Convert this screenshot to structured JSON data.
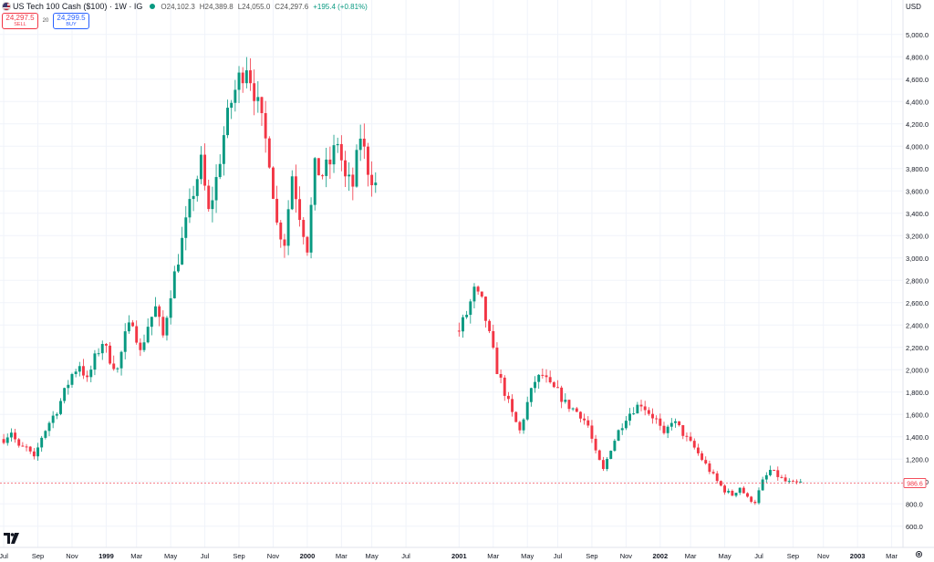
{
  "header": {
    "title": "US Tech 100 Cash ($100) · 1W · IG",
    "open": "O24,102.3",
    "high": "H24,389.8",
    "low": "L24,055.0",
    "close": "C24,297.6",
    "change": "+195.4 (+0.81%)",
    "status_color": "#089981"
  },
  "trade": {
    "sell_price": "24,297.5",
    "sell_label": "SELL",
    "spread": "20",
    "buy_price": "24,299.5",
    "buy_label": "BUY"
  },
  "currency": "USD",
  "colors": {
    "up": "#089981",
    "down": "#f23645",
    "grid": "#f0f3fa",
    "text": "#131722"
  },
  "icons": {
    "logo": "tradingview-logo",
    "settings": "gear-icon",
    "flag": "us-flag-icon"
  },
  "chart_data": {
    "type": "candlestick",
    "ylim": [
      500,
      5200
    ],
    "y_ticks": [
      "600.0",
      "800.0",
      "1,000.0",
      "1,200.0",
      "1,400.0",
      "1,600.0",
      "1,800.0",
      "2,000.0",
      "2,200.0",
      "2,400.0",
      "2,600.0",
      "2,800.0",
      "3,000.0",
      "3,200.0",
      "3,400.0",
      "3,600.0",
      "3,800.0",
      "4,000.0",
      "4,200.0",
      "4,400.0",
      "4,600.0",
      "4,800.0",
      "5,000.0"
    ],
    "x_ticks": [
      {
        "label": "Jul",
        "week": 0,
        "bold": false
      },
      {
        "label": "Sep",
        "week": 9,
        "bold": false
      },
      {
        "label": "Nov",
        "week": 18,
        "bold": false
      },
      {
        "label": "1999",
        "week": 27,
        "bold": true
      },
      {
        "label": "Mar",
        "week": 35,
        "bold": false
      },
      {
        "label": "May",
        "week": 44,
        "bold": false
      },
      {
        "label": "Jul",
        "week": 53,
        "bold": false
      },
      {
        "label": "Sep",
        "week": 62,
        "bold": false
      },
      {
        "label": "Nov",
        "week": 71,
        "bold": false
      },
      {
        "label": "2000",
        "week": 80,
        "bold": true
      },
      {
        "label": "Mar",
        "week": 89,
        "bold": false
      },
      {
        "label": "May",
        "week": 97,
        "bold": false
      },
      {
        "label": "Jul",
        "week": 106,
        "bold": false
      },
      {
        "label": "2001",
        "week": 120,
        "bold": true
      },
      {
        "label": "Mar",
        "week": 129,
        "bold": false
      },
      {
        "label": "May",
        "week": 138,
        "bold": false
      },
      {
        "label": "Jul",
        "week": 146,
        "bold": false
      },
      {
        "label": "Sep",
        "week": 155,
        "bold": false
      },
      {
        "label": "Nov",
        "week": 164,
        "bold": false
      },
      {
        "label": "2002",
        "week": 173,
        "bold": true
      },
      {
        "label": "Mar",
        "week": 181,
        "bold": false
      },
      {
        "label": "May",
        "week": 190,
        "bold": false
      },
      {
        "label": "Jul",
        "week": 199,
        "bold": false
      },
      {
        "label": "Sep",
        "week": 208,
        "bold": false
      },
      {
        "label": "Nov",
        "week": 216,
        "bold": false
      },
      {
        "label": "2003",
        "week": 225,
        "bold": true
      },
      {
        "label": "Mar",
        "week": 234,
        "bold": false
      }
    ],
    "last_price": "986.6",
    "last_price_value": 986.6,
    "weeks": 237,
    "segments": [
      {
        "from": 0,
        "path": [
          1380,
          1450,
          1300,
          1300,
          1200,
          1400,
          1530,
          1640,
          1800,
          1960,
          2050,
          1900,
          2100,
          2250,
          2100,
          2000,
          2300,
          2450,
          2150,
          2400,
          2550,
          2300,
          2700,
          3000,
          3300,
          3600,
          3850,
          3400,
          3700,
          4100,
          4400,
          4600,
          4750,
          4500,
          4200,
          3900,
          3300,
          3150,
          3750,
          3400,
          3100,
          3800,
          3750,
          3850,
          4050,
          3700,
          3650,
          4100,
          3800,
          3650
        ]
      },
      {
        "from": 120,
        "path": [
          2350,
          2500,
          2700,
          2600,
          2300,
          2000,
          1800,
          1600,
          1450,
          1700,
          1900,
          1950,
          1850,
          1800,
          1700,
          1650,
          1600,
          1500,
          1250,
          1100,
          1300,
          1450,
          1580,
          1650,
          1700,
          1620,
          1550,
          1400,
          1550,
          1480,
          1380,
          1300,
          1200,
          1100,
          1000,
          920,
          880,
          950,
          850,
          820,
          1000,
          1100,
          1050,
          1000,
          980,
          990
        ]
      }
    ]
  }
}
